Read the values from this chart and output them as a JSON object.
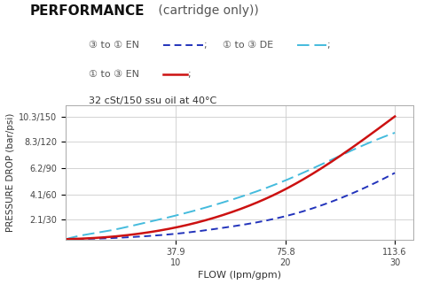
{
  "title_bold": "PERFORMANCE",
  "title_normal": " (cartridge only))",
  "subtitle": "32 cSt/150 ssu oil at 40°C",
  "xlabel": "FLOW (lpm/gpm)",
  "ylabel": "PRESSURE DROP (bar/psi)",
  "ytick_labels": [
    "2.1/30",
    "4.1/60",
    "6.2/90",
    "8.3/120",
    "10.3/150"
  ],
  "ytick_values": [
    2.1,
    4.1,
    6.2,
    8.3,
    10.3
  ],
  "xtick_labels": [
    "37.9\n10",
    "75.8\n20",
    "113.6\n30"
  ],
  "xtick_values": [
    37.9,
    75.8,
    113.6
  ],
  "xlim": [
    0,
    120
  ],
  "ylim": [
    0.5,
    11.2
  ],
  "curve_2to1_EN": {
    "x": [
      0,
      5,
      15,
      25,
      37.9,
      55,
      75.8,
      95,
      113.6
    ],
    "y": [
      0.52,
      0.54,
      0.6,
      0.72,
      0.95,
      1.45,
      2.35,
      3.8,
      5.8
    ],
    "color": "#2233bb",
    "linewidth": 1.4,
    "dashes": [
      4,
      2.5
    ]
  },
  "curve_1to2_DE": {
    "x": [
      0,
      5,
      15,
      25,
      37.9,
      55,
      75.8,
      95,
      113.6
    ],
    "y": [
      0.52,
      0.8,
      1.2,
      1.7,
      2.4,
      3.5,
      5.2,
      7.2,
      9.0
    ],
    "color": "#44bbdd",
    "linewidth": 1.4,
    "dashes": [
      7,
      3
    ]
  },
  "curve_1to2_EN": {
    "x": [
      0,
      5,
      15,
      25,
      37.9,
      55,
      75.8,
      95,
      113.6
    ],
    "y": [
      0.52,
      0.56,
      0.7,
      0.95,
      1.45,
      2.5,
      4.5,
      7.2,
      10.3
    ],
    "color": "#cc1111",
    "linewidth": 1.8
  },
  "background_color": "#ffffff",
  "grid_color": "#cccccc",
  "legend_text_color": "#555555",
  "dark_blue": "#2233bb",
  "light_blue": "#44bbdd",
  "red": "#cc1111"
}
